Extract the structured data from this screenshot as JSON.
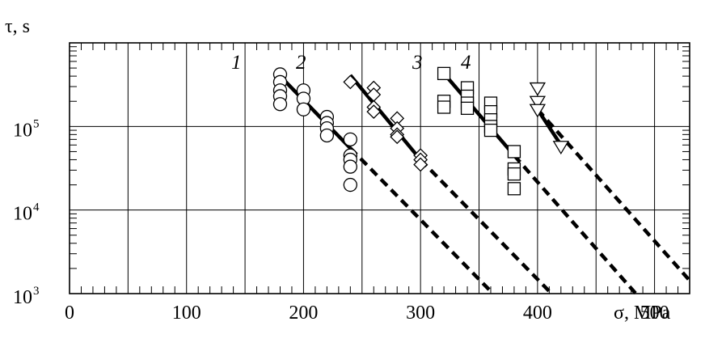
{
  "chart_data": {
    "type": "scatter",
    "xlabel": "σ, MPa",
    "ylabel": "τ, s",
    "xlim": [
      0,
      530
    ],
    "ylim": [
      1000,
      1000000
    ],
    "yscale": "log",
    "grid": true,
    "x_ticks": [
      {
        "value": 0,
        "label": "0"
      },
      {
        "value": 100,
        "label": "100"
      },
      {
        "value": 200,
        "label": "200"
      },
      {
        "value": 300,
        "label": "300"
      },
      {
        "value": 400,
        "label": "400"
      },
      {
        "value": 500,
        "label": "500"
      }
    ],
    "y_ticks": [
      {
        "value": 1000,
        "base": "10",
        "exp": "3"
      },
      {
        "value": 10000,
        "base": "10",
        "exp": "4"
      },
      {
        "value": 100000,
        "base": "10",
        "exp": "5"
      }
    ],
    "series": [
      {
        "label": "1",
        "marker": "circle",
        "points": [
          [
            180,
            420000
          ],
          [
            180,
            340000
          ],
          [
            180,
            270000
          ],
          [
            180,
            230000
          ],
          [
            180,
            185000
          ],
          [
            200,
            270000
          ],
          [
            200,
            215000
          ],
          [
            200,
            160000
          ],
          [
            220,
            130000
          ],
          [
            220,
            110000
          ],
          [
            220,
            95000
          ],
          [
            220,
            78000
          ],
          [
            240,
            70000
          ],
          [
            240,
            45000
          ],
          [
            240,
            40000
          ],
          [
            240,
            33000
          ],
          [
            240,
            20000
          ]
        ],
        "fit": [
          [
            180,
            400000
          ],
          [
            240,
            55000
          ]
        ],
        "extrapolation": [
          [
            240,
            55000
          ],
          [
            362,
            1000
          ]
        ]
      },
      {
        "label": "2",
        "marker": "diamond",
        "points": [
          [
            240,
            340000
          ],
          [
            260,
            290000
          ],
          [
            260,
            240000
          ],
          [
            260,
            170000
          ],
          [
            260,
            150000
          ],
          [
            280,
            125000
          ],
          [
            280,
            95000
          ],
          [
            280,
            80000
          ],
          [
            280,
            75000
          ],
          [
            300,
            45000
          ],
          [
            300,
            40000
          ],
          [
            300,
            35000
          ]
        ],
        "fit": [
          [
            240,
            410000
          ],
          [
            300,
            40000
          ]
        ],
        "extrapolation": [
          [
            300,
            40000
          ],
          [
            412,
            1000
          ]
        ]
      },
      {
        "label": "3",
        "marker": "square",
        "points": [
          [
            320,
            430000
          ],
          [
            320,
            200000
          ],
          [
            320,
            170000
          ],
          [
            340,
            290000
          ],
          [
            340,
            230000
          ],
          [
            340,
            190000
          ],
          [
            340,
            165000
          ],
          [
            360,
            190000
          ],
          [
            360,
            150000
          ],
          [
            360,
            120000
          ],
          [
            360,
            100000
          ],
          [
            360,
            90000
          ],
          [
            380,
            50000
          ],
          [
            380,
            31000
          ],
          [
            380,
            27000
          ],
          [
            380,
            18000
          ]
        ],
        "fit": [
          [
            320,
            430000
          ],
          [
            380,
            45000
          ]
        ],
        "extrapolation": [
          [
            380,
            45000
          ],
          [
            484,
            1000
          ]
        ]
      },
      {
        "label": "4",
        "marker": "triangle-down",
        "points": [
          [
            400,
            290000
          ],
          [
            400,
            200000
          ],
          [
            400,
            160000
          ],
          [
            420,
            58000
          ]
        ],
        "fit": [
          [
            400,
            160000
          ],
          [
            420,
            60000
          ]
        ],
        "extrapolation": [
          [
            400,
            160000
          ],
          [
            540,
            1000
          ]
        ]
      }
    ]
  }
}
